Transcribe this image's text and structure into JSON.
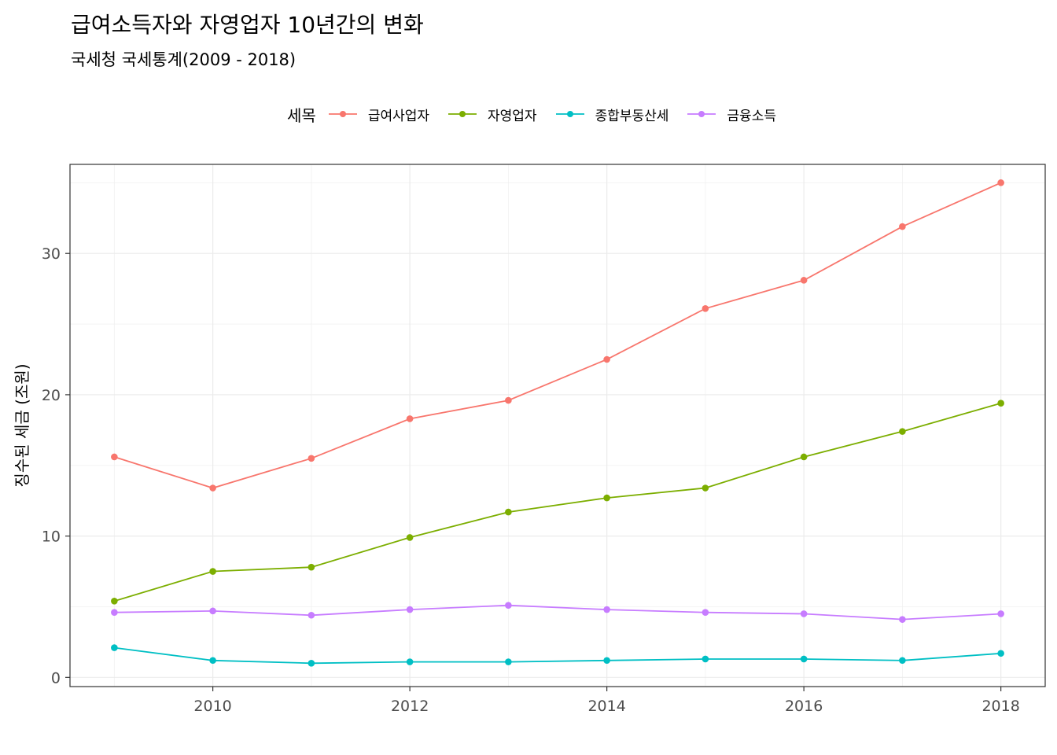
{
  "chart_data": {
    "type": "line",
    "title": "급여소득자와 자영업자 10년간의 변화",
    "subtitle": "국세청 국세통계(2009 - 2018)",
    "xlabel": "",
    "ylabel": "징수된 세금 (조원)",
    "legend_title": "세목",
    "legend_position": "top",
    "grid": true,
    "x": [
      2009,
      2010,
      2011,
      2012,
      2013,
      2014,
      2015,
      2016,
      2017,
      2018
    ],
    "xlim": [
      2008.55,
      2018.45
    ],
    "ylim": [
      -0.65,
      36.3
    ],
    "x_ticks": [
      "2010",
      "2012",
      "2014",
      "2016",
      "2018"
    ],
    "y_ticks": [
      "0",
      "10",
      "20",
      "30"
    ],
    "series": [
      {
        "name": "급여사업자",
        "color": "#F8766D",
        "values": [
          15.6,
          13.4,
          15.5,
          18.3,
          19.6,
          22.5,
          26.1,
          28.1,
          31.9,
          35.0
        ]
      },
      {
        "name": "자영업자",
        "color": "#7CAE00",
        "values": [
          5.4,
          7.5,
          7.8,
          9.9,
          11.7,
          12.7,
          13.4,
          15.6,
          17.4,
          19.4
        ]
      },
      {
        "name": "종합부동산세",
        "color": "#00BFC4",
        "values": [
          2.1,
          1.2,
          1.0,
          1.1,
          1.1,
          1.2,
          1.3,
          1.3,
          1.2,
          1.7
        ]
      },
      {
        "name": "금융소득",
        "color": "#C77CFF",
        "values": [
          4.6,
          4.7,
          4.4,
          4.8,
          5.1,
          4.8,
          4.6,
          4.5,
          4.1,
          4.5
        ]
      }
    ]
  }
}
